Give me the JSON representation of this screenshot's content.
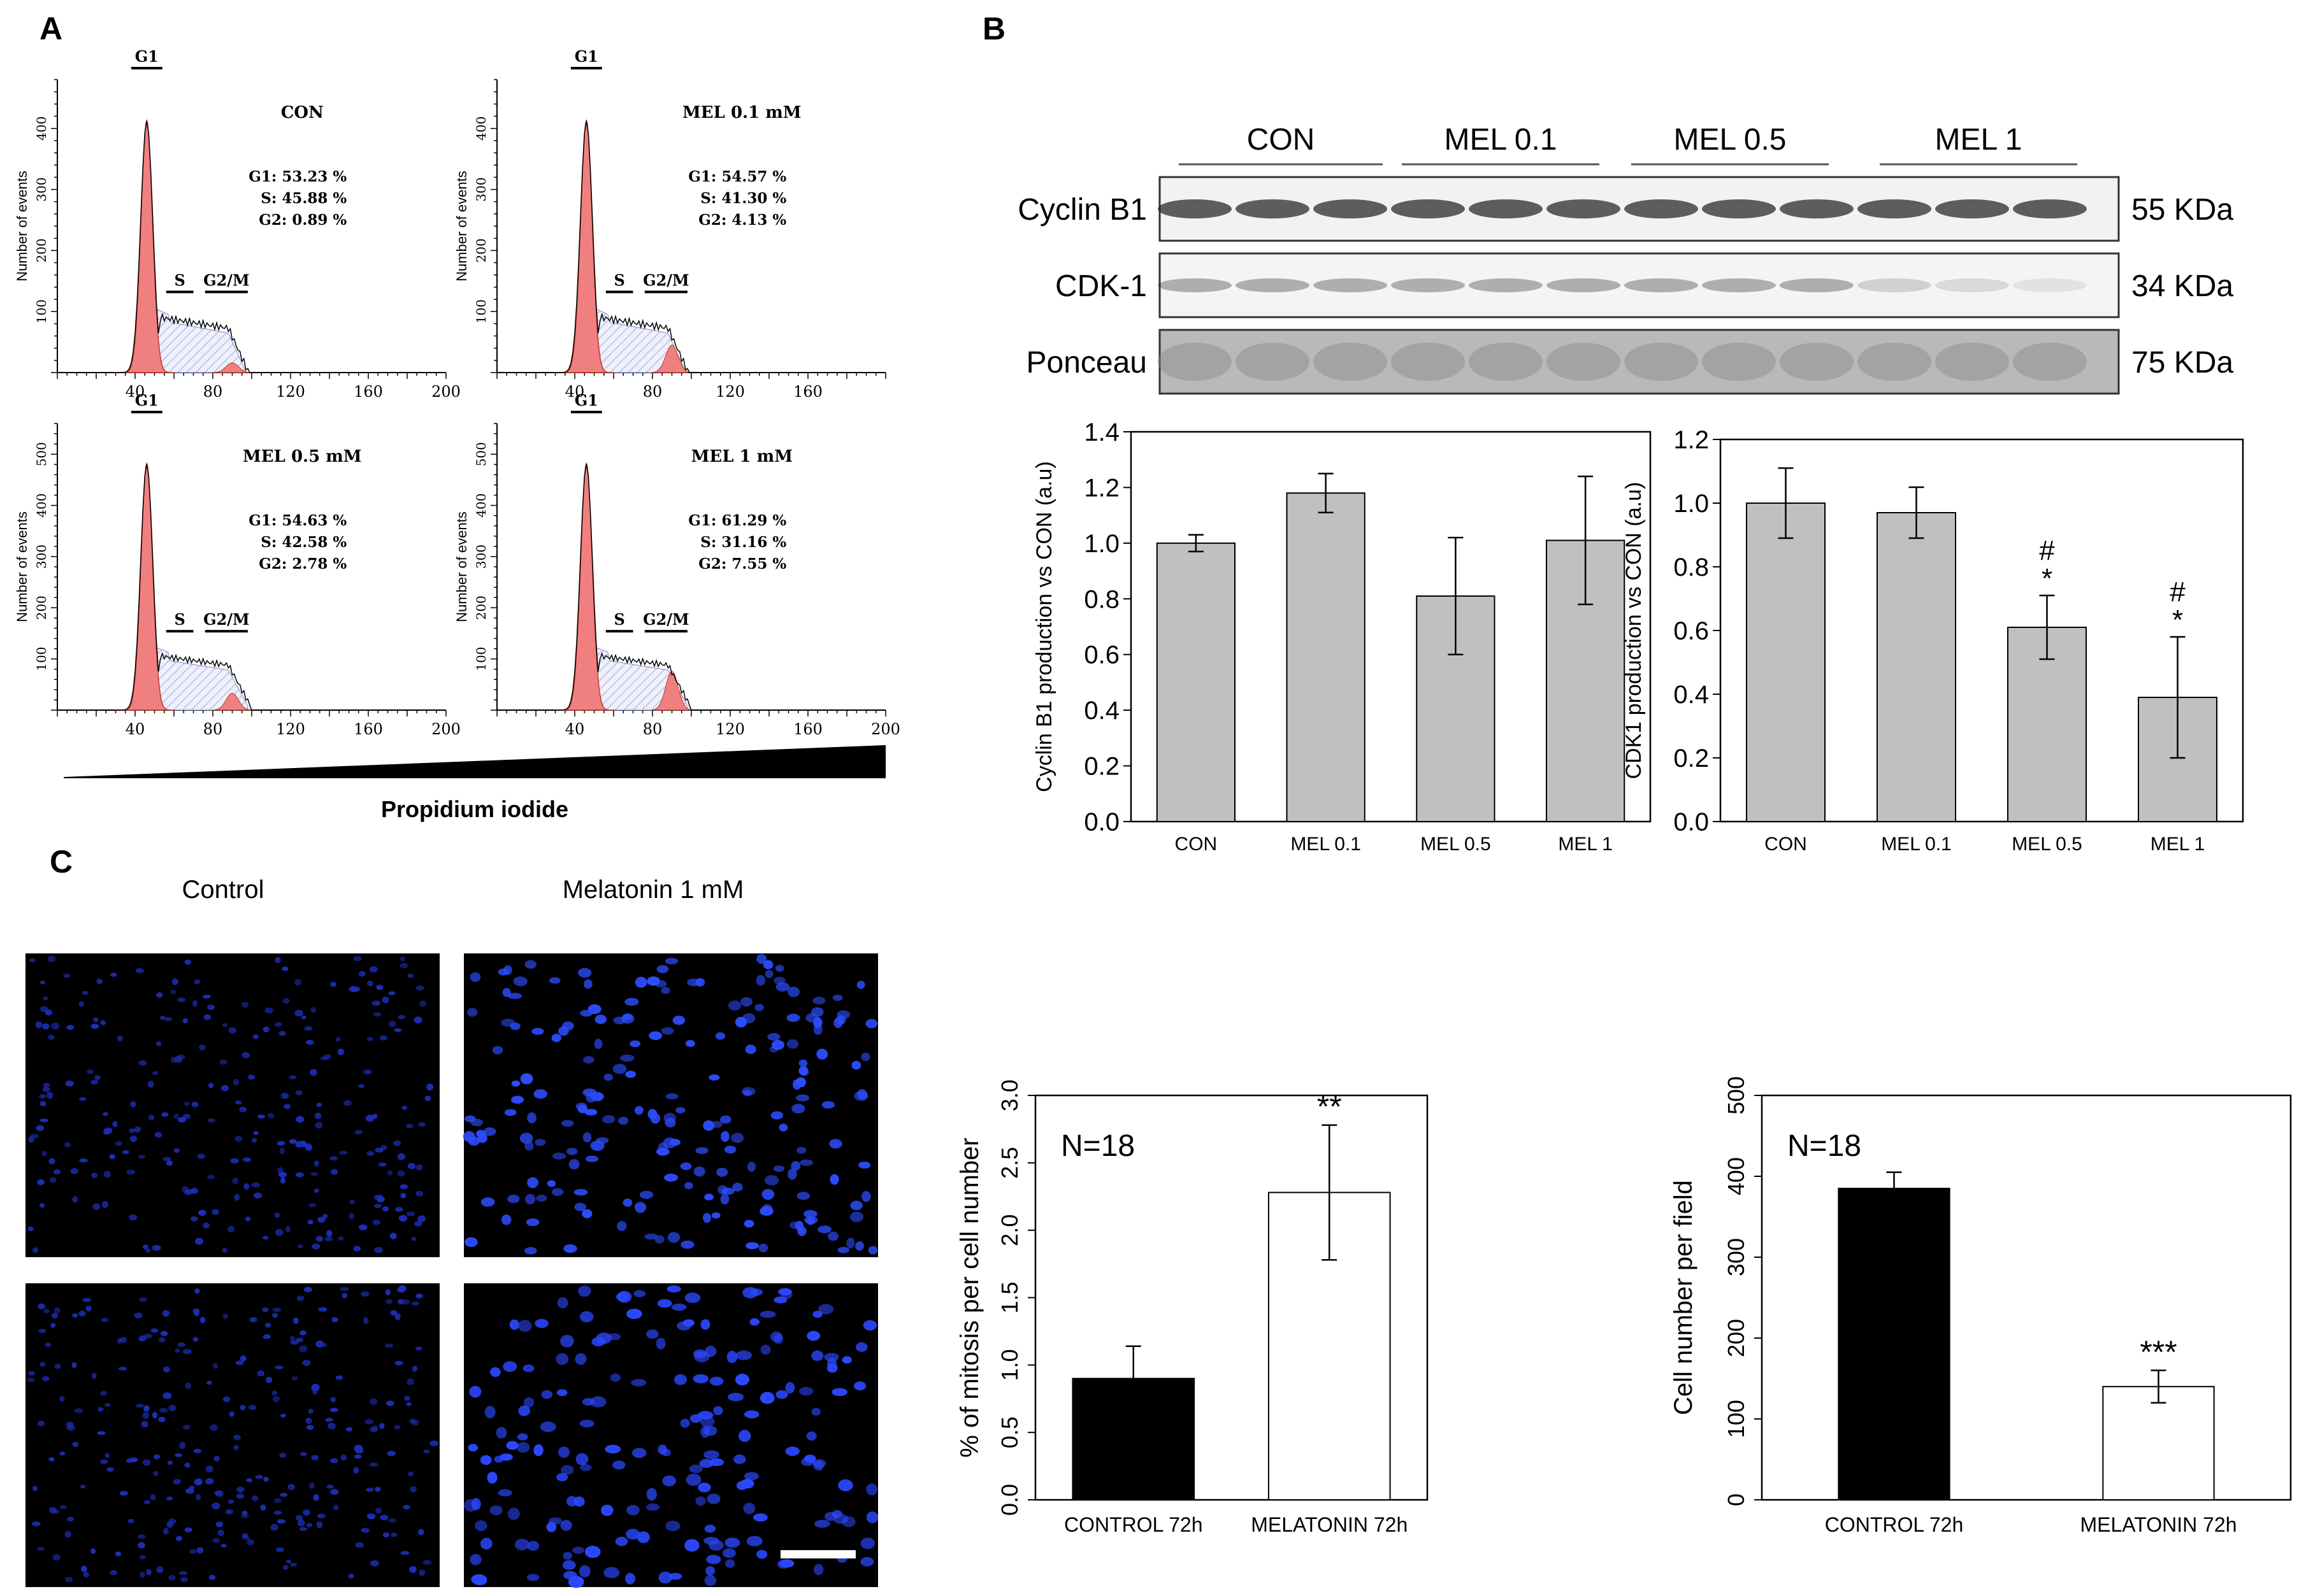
{
  "panels": {
    "A": {
      "letter": "A",
      "x_axis_title": "Propidium iodide",
      "y_axis_title": "Number of events",
      "histograms": [
        {
          "condition": "CON",
          "stats": [
            "G1: 53.23 %",
            "S: 45.88 %",
            "G2: 0.89 %"
          ],
          "gates": [
            "G1",
            "S",
            "G2/M"
          ],
          "x_ticks": [
            40,
            80,
            120,
            160,
            200
          ],
          "y_ticks": [
            100,
            200,
            300,
            400
          ],
          "y_max": 480,
          "phase_percent": {
            "G1": 53.23,
            "S": 45.88,
            "G2": 0.89
          }
        },
        {
          "condition": "MEL 0.1 mM",
          "stats": [
            "G1: 54.57 %",
            "S: 41.30 %",
            "G2: 4.13 %"
          ],
          "gates": [
            "G1",
            "S",
            "G2/M"
          ],
          "x_ticks": [
            40,
            80,
            120,
            160
          ],
          "y_ticks": [
            100,
            200,
            300,
            400
          ],
          "y_max": 480,
          "phase_percent": {
            "G1": 54.57,
            "S": 41.3,
            "G2": 4.13
          }
        },
        {
          "condition": "MEL 0.5 mM",
          "stats": [
            "G1: 54.63 %",
            "S: 42.58 %",
            "G2: 2.78 %"
          ],
          "gates": [
            "G1",
            "S",
            "G2/M"
          ],
          "x_ticks": [
            40,
            80,
            120,
            160,
            200
          ],
          "y_ticks": [
            100,
            200,
            300,
            400,
            500
          ],
          "y_max": 560,
          "phase_percent": {
            "G1": 54.63,
            "S": 42.58,
            "G2": 2.78
          }
        },
        {
          "condition": "MEL 1 mM",
          "stats": [
            "G1: 61.29 %",
            "S: 31.16 %",
            "G2: 7.55 %"
          ],
          "gates": [
            "G1",
            "S",
            "G2/M"
          ],
          "x_ticks": [
            40,
            80,
            120,
            160,
            200
          ],
          "y_ticks": [
            100,
            200,
            300,
            400,
            500
          ],
          "y_max": 560,
          "phase_percent": {
            "G1": 61.29,
            "S": 31.16,
            "G2": 7.55
          }
        }
      ]
    },
    "B": {
      "letter": "B",
      "groups": [
        "CON",
        "MEL 0.1",
        "MEL 0.5",
        "MEL 1"
      ],
      "blots": [
        {
          "label": "Cyclin B1",
          "size": "55 KDa"
        },
        {
          "label": "CDK-1",
          "size": "34 KDa"
        },
        {
          "label": "Ponceau",
          "size": "75 KDa"
        }
      ]
    },
    "C": {
      "letter": "C",
      "image_titles": [
        "Control",
        "Melatonin 1 mM"
      ]
    }
  },
  "chart_data": [
    {
      "type": "bar",
      "categories": [
        "CON",
        "MEL 0.1",
        "MEL 0.5",
        "MEL 1"
      ],
      "values": [
        1.0,
        1.18,
        0.81,
        1.01
      ],
      "errors": [
        0.03,
        0.07,
        0.21,
        0.23
      ],
      "ylabel": "Cyclin B1 production vs CON (a.u)",
      "ylim": [
        0,
        1.4
      ],
      "yticks": [
        "0.0",
        "0.2",
        "0.4",
        "0.6",
        "0.8",
        "1.0",
        "1.2",
        "1.4"
      ],
      "bar_color": "#c0c0c0",
      "annotations": [
        "",
        "",
        "",
        ""
      ]
    },
    {
      "type": "bar",
      "categories": [
        "CON",
        "MEL 0.1",
        "MEL 0.5",
        "MEL 1"
      ],
      "values": [
        1.0,
        0.97,
        0.61,
        0.39
      ],
      "errors": [
        0.11,
        0.08,
        0.1,
        0.19
      ],
      "ylabel": "CDK1 production vs CON (a.u)",
      "ylim": [
        0,
        1.2
      ],
      "yticks": [
        "0.0",
        "0.2",
        "0.4",
        "0.6",
        "0.8",
        "1.0",
        "1.2"
      ],
      "bar_color": "#c0c0c0",
      "annotations": [
        "",
        "",
        "#\n*",
        "#\n*"
      ]
    },
    {
      "type": "bar",
      "categories": [
        "CONTROL 72h",
        "MELATONIN 72h"
      ],
      "values": [
        0.9,
        2.28
      ],
      "errors": [
        0.24,
        0.5
      ],
      "ylabel": "% of mitosis per cell number",
      "ylim": [
        0,
        3.0
      ],
      "yticks": [
        "0.0",
        "0.5",
        "1.0",
        "1.5",
        "2.0",
        "2.5",
        "3.0"
      ],
      "bar_colors": [
        "#000000",
        "#ffffff"
      ],
      "inset_text": "N=18",
      "annotations": [
        "",
        "**"
      ]
    },
    {
      "type": "bar",
      "categories": [
        "CONTROL 72h",
        "MELATONIN 72h"
      ],
      "values": [
        385,
        140
      ],
      "errors": [
        20,
        20
      ],
      "ylabel": "Cell number per field",
      "ylim": [
        0,
        500
      ],
      "yticks": [
        "0",
        "100",
        "200",
        "300",
        "400",
        "500"
      ],
      "bar_colors": [
        "#000000",
        "#ffffff"
      ],
      "inset_text": "N=18",
      "annotations": [
        "",
        "***"
      ]
    }
  ]
}
